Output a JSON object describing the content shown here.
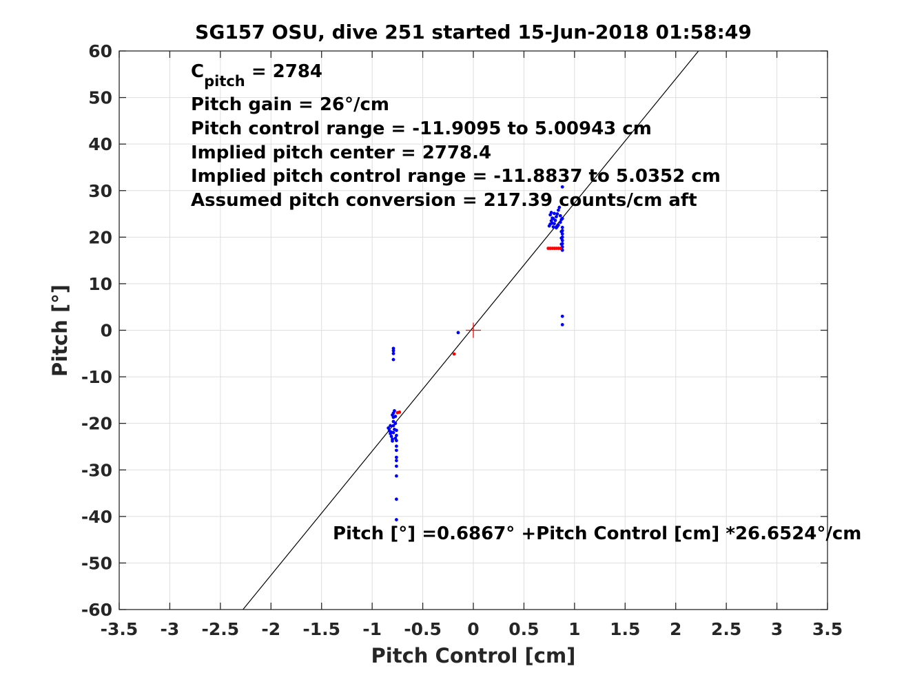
{
  "chart_data": {
    "type": "scatter",
    "title": "SG157 OSU, dive 251 started 15-Jun-2018 01:58:49",
    "xlabel": "Pitch Control [cm]",
    "ylabel": "Pitch [°]",
    "xlim": [
      -3.5,
      3.5
    ],
    "ylim": [
      -60,
      60
    ],
    "xticks": [
      -3.5,
      -3,
      -2.5,
      -2,
      -1.5,
      -1,
      -0.5,
      0,
      0.5,
      1,
      1.5,
      2,
      2.5,
      3,
      3.5
    ],
    "xtick_labels": [
      "-3.5",
      "-3",
      "-2.5",
      "-2",
      "-1.5",
      "-1",
      "-0.5",
      "0",
      "0.5",
      "1",
      "1.5",
      "2",
      "2.5",
      "3",
      "3.5"
    ],
    "yticks": [
      -60,
      -50,
      -40,
      -30,
      -20,
      -10,
      0,
      10,
      20,
      30,
      40,
      50,
      60
    ],
    "ytick_labels": [
      "-60",
      "-50",
      "-40",
      "-30",
      "-20",
      "-10",
      "0",
      "10",
      "20",
      "30",
      "40",
      "50",
      "60"
    ],
    "grid": true,
    "fit_line": {
      "intercept": 0.6867,
      "slope": 26.6524
    },
    "center_marker": {
      "x": 0,
      "y": 0,
      "color": "#ff0000"
    },
    "annotations": {
      "c_pitch_main": "C",
      "c_pitch_sub": "pitch",
      "c_pitch_rest": " = 2784",
      "lines": [
        "Pitch gain = 26°/cm",
        "Pitch control range = -11.9095 to 5.00943 cm",
        "Implied pitch center = 2778.4",
        "Implied pitch control range = -11.8837 to 5.0352 cm",
        "Assumed pitch conversion = 217.39 counts/cm aft"
      ],
      "fit_equation": "Pitch [°] =0.6867° +Pitch Control [cm] *26.6524°/cm"
    },
    "series": [
      {
        "color": "#0000ff",
        "points": [
          [
            0.75,
            22.4
          ],
          [
            0.76,
            22.8
          ],
          [
            0.77,
            23.5
          ],
          [
            0.78,
            24.1
          ],
          [
            0.76,
            24.8
          ],
          [
            0.77,
            25.3
          ],
          [
            0.79,
            22.2
          ],
          [
            0.8,
            22.9
          ],
          [
            0.81,
            23.6
          ],
          [
            0.82,
            24.4
          ],
          [
            0.83,
            25.0
          ],
          [
            0.84,
            25.8
          ],
          [
            0.85,
            26.4
          ],
          [
            0.8,
            25.1
          ],
          [
            0.78,
            23.0
          ],
          [
            0.83,
            22.3
          ],
          [
            0.84,
            22.6
          ],
          [
            0.86,
            23.2
          ],
          [
            0.87,
            23.8
          ],
          [
            0.88,
            22.1
          ],
          [
            0.88,
            21.4
          ],
          [
            0.88,
            20.7
          ],
          [
            0.88,
            20.0
          ],
          [
            0.88,
            19.3
          ],
          [
            0.88,
            18.6
          ],
          [
            0.88,
            17.9
          ],
          [
            0.88,
            17.2
          ],
          [
            0.87,
            17.6
          ],
          [
            0.87,
            18.5
          ],
          [
            0.87,
            19.8
          ],
          [
            0.87,
            21.2
          ],
          [
            0.88,
            24.0
          ],
          [
            0.86,
            24.6
          ],
          [
            0.82,
            22.0
          ],
          [
            0.79,
            24.0
          ],
          [
            0.88,
            30.8
          ],
          [
            0.88,
            3.0
          ],
          [
            0.88,
            1.2
          ],
          [
            -0.15,
            -0.5
          ],
          [
            -0.79,
            -3.9
          ],
          [
            -0.79,
            -4.4
          ],
          [
            -0.79,
            -5.0
          ],
          [
            -0.79,
            -6.3
          ],
          [
            -0.84,
            -21.0
          ],
          [
            -0.83,
            -21.6
          ],
          [
            -0.82,
            -22.2
          ],
          [
            -0.81,
            -22.8
          ],
          [
            -0.8,
            -23.4
          ],
          [
            -0.79,
            -22.0
          ],
          [
            -0.78,
            -21.3
          ],
          [
            -0.79,
            -20.5
          ],
          [
            -0.79,
            -19.6
          ],
          [
            -0.79,
            -18.7
          ],
          [
            -0.79,
            -17.8
          ],
          [
            -0.78,
            -17.3
          ],
          [
            -0.77,
            -18.5
          ],
          [
            -0.77,
            -20.0
          ],
          [
            -0.76,
            -21.5
          ],
          [
            -0.76,
            -22.6
          ],
          [
            -0.76,
            -23.7
          ],
          [
            -0.76,
            -24.9
          ],
          [
            -0.76,
            -25.8
          ],
          [
            -0.76,
            -27.3
          ],
          [
            -0.76,
            -28.0
          ],
          [
            -0.76,
            -29.2
          ],
          [
            -0.76,
            -31.3
          ],
          [
            -0.76,
            -36.3
          ],
          [
            -0.76,
            -40.7
          ],
          [
            -0.8,
            -23.8
          ],
          [
            -0.81,
            -21.9
          ],
          [
            -0.77,
            -23.2
          ],
          [
            -0.8,
            -18.2
          ],
          [
            -0.82,
            -20.5
          ]
        ]
      },
      {
        "color": "#ff0000",
        "points": [
          [
            0.74,
            17.6
          ],
          [
            0.76,
            17.6
          ],
          [
            0.78,
            17.6
          ],
          [
            0.8,
            17.6
          ],
          [
            0.82,
            17.6
          ],
          [
            0.84,
            17.6
          ],
          [
            0.86,
            17.6
          ],
          [
            -0.19,
            -5.1
          ],
          [
            -0.73,
            -17.6
          ],
          [
            -0.75,
            -17.7
          ]
        ]
      }
    ]
  }
}
